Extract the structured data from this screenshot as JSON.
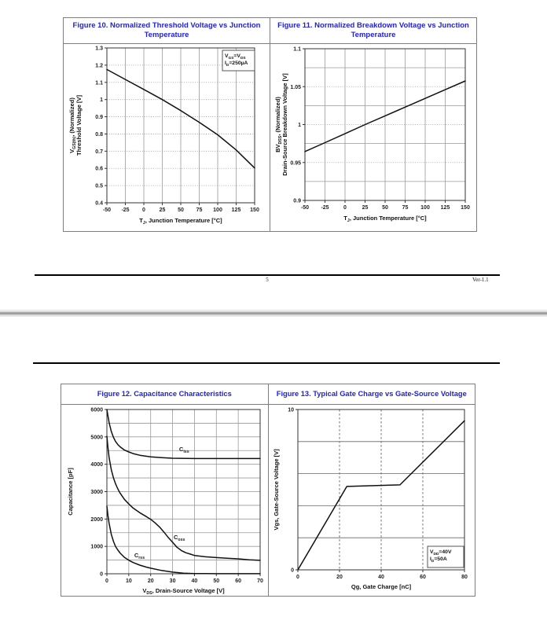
{
  "colors": {
    "figure_title_blue": "#2121de"
  },
  "footer": {
    "page_number": "5",
    "version": "Ver-1.1"
  },
  "chart_data": [
    {
      "type": "line",
      "title": "Figure 10. Normalized Threshold Voltage vs Junction Temperature",
      "xlabel": "T_{J}, Junction Temperature [°C]",
      "ylabel_lines": [
        "V_{GS(th)}, (Normalized)",
        "Threshold Voltage [V]"
      ],
      "xlim": [
        -50,
        150
      ],
      "ylim": [
        0.4,
        1.3
      ],
      "x_ticks": [
        -50,
        -25,
        0,
        25,
        50,
        75,
        100,
        125,
        150
      ],
      "x_tick_labels": [
        "-50",
        "-25",
        "0",
        "25",
        "50",
        "75",
        "100",
        "125",
        "150"
      ],
      "y_ticks": [
        0.4,
        0.5,
        0.6,
        0.7,
        0.8,
        0.9,
        1,
        1.1,
        1.2,
        1.3
      ],
      "y_tick_labels": [
        "0.4",
        "0.5",
        "0.6",
        "0.7",
        "0.8",
        "0.9",
        "1",
        "1.1",
        "1.2",
        "1.3"
      ],
      "grids": [
        {
          "axis": "x",
          "style": "solid",
          "values": [
            -25,
            0,
            25,
            50,
            75,
            100,
            125
          ]
        },
        {
          "axis": "y",
          "style": "dotted",
          "values": [
            0.5,
            0.6,
            0.7,
            0.8,
            0.9,
            1,
            1.1,
            1.2
          ]
        }
      ],
      "legend_position": "none",
      "series": [
        {
          "name": "normalized-threshold-voltage",
          "points": [
            [
              -50,
              1.175
            ],
            [
              -25,
              1.117
            ],
            [
              0,
              1.059
            ],
            [
              25,
              1.0
            ],
            [
              50,
              0.936
            ],
            [
              75,
              0.868
            ],
            [
              100,
              0.795
            ],
            [
              125,
              0.707
            ],
            [
              150,
              0.602
            ]
          ]
        }
      ],
      "inset": {
        "lines": [
          "V_{GS}=V_{DS}",
          "I_{D}=250µA"
        ],
        "position": "top-right"
      }
    },
    {
      "type": "line",
      "title": "Figure 11. Normalized Breakdown Voltage vs Junction Temperature",
      "xlabel": "T_{J}, Junction Temperature [°C]",
      "ylabel_lines": [
        "BV_{DSS}, (Normalized)",
        "Drain-Source Breakdown Voltage [V]"
      ],
      "xlim": [
        -50,
        150
      ],
      "ylim": [
        0.9,
        1.1
      ],
      "x_ticks": [
        -50,
        -25,
        0,
        25,
        50,
        75,
        100,
        125,
        150
      ],
      "x_tick_labels": [
        "-50",
        "-25",
        "0",
        "25",
        "50",
        "75",
        "100",
        "125",
        "150"
      ],
      "y_ticks": [
        0.9,
        0.95,
        1,
        1.05,
        1.1
      ],
      "y_tick_labels": [
        "0.9",
        "0.95",
        "1",
        "1.05",
        "1.1"
      ],
      "grids": [
        {
          "axis": "x",
          "style": "solid",
          "values": [
            -25,
            0,
            25,
            50,
            75,
            100,
            125
          ]
        },
        {
          "axis": "y",
          "style": "solid",
          "values": [
            0.925,
            0.975,
            1.025,
            1.075
          ]
        },
        {
          "axis": "y",
          "style": "dotted",
          "values": [
            0.95,
            1,
            1.05
          ]
        }
      ],
      "legend_position": "none",
      "series": [
        {
          "name": "normalized-breakdown-voltage",
          "points": [
            [
              -50,
              0.9645
            ],
            [
              -25,
              0.9762
            ],
            [
              0,
              0.988
            ],
            [
              25,
              1.0
            ],
            [
              50,
              1.0115
            ],
            [
              75,
              1.023
            ],
            [
              100,
              1.0345
            ],
            [
              125,
              1.046
            ],
            [
              150,
              1.0575
            ]
          ]
        }
      ]
    },
    {
      "type": "line",
      "title": "Figure 12. Capacitance Characteristics",
      "xlabel": "V_{DS}, Drain-Source Voltage [V]",
      "ylabel_lines": [
        "Capacitance [pF]"
      ],
      "xlim": [
        0,
        70
      ],
      "ylim": [
        0,
        6000
      ],
      "x_ticks": [
        0,
        10,
        20,
        30,
        40,
        50,
        60,
        70
      ],
      "x_tick_labels": [
        "0",
        "10",
        "20",
        "30",
        "40",
        "50",
        "60",
        "70"
      ],
      "y_ticks": [
        0,
        1000,
        2000,
        3000,
        4000,
        5000,
        6000
      ],
      "y_tick_labels": [
        "0",
        "1000",
        "2000",
        "3000",
        "4000",
        "5000",
        "6000"
      ],
      "grids": [
        {
          "axis": "x",
          "style": "solid",
          "values": [
            10,
            20,
            30,
            40,
            50,
            60
          ]
        },
        {
          "axis": "y",
          "style": "solid",
          "values": [
            500,
            1000,
            1500,
            2000,
            2500,
            3000,
            3500,
            4000,
            4500,
            5000,
            5500
          ]
        }
      ],
      "legend_position": "none",
      "series": [
        {
          "name": "Ciss",
          "label": "C_{iss}",
          "label_at": [
            33,
            4480
          ],
          "points": [
            [
              0,
              6000
            ],
            [
              0.5,
              5760
            ],
            [
              1,
              5530
            ],
            [
              2,
              5200
            ],
            [
              3,
              4980
            ],
            [
              4,
              4830
            ],
            [
              5,
              4720
            ],
            [
              6,
              4640
            ],
            [
              8,
              4520
            ],
            [
              10,
              4450
            ],
            [
              12,
              4390
            ],
            [
              15,
              4330
            ],
            [
              20,
              4270
            ],
            [
              25,
              4240
            ],
            [
              30,
              4220
            ],
            [
              40,
              4210
            ],
            [
              50,
              4210
            ],
            [
              60,
              4210
            ],
            [
              70,
              4210
            ]
          ]
        },
        {
          "name": "Coss",
          "label": "C_{oss}",
          "label_at": [
            30.5,
            1270
          ],
          "points": [
            [
              0,
              5020
            ],
            [
              0.5,
              4600
            ],
            [
              1,
              4250
            ],
            [
              2,
              3800
            ],
            [
              3,
              3500
            ],
            [
              4,
              3280
            ],
            [
              5,
              3100
            ],
            [
              6,
              2950
            ],
            [
              8,
              2720
            ],
            [
              10,
              2550
            ],
            [
              12,
              2400
            ],
            [
              15,
              2230
            ],
            [
              18,
              2090
            ],
            [
              20,
              1990
            ],
            [
              22,
              1860
            ],
            [
              24,
              1710
            ],
            [
              26,
              1530
            ],
            [
              28,
              1330
            ],
            [
              30,
              1150
            ],
            [
              32,
              970
            ],
            [
              34,
              850
            ],
            [
              36,
              770
            ],
            [
              38,
              720
            ],
            [
              40,
              670
            ],
            [
              45,
              620
            ],
            [
              50,
              590
            ],
            [
              55,
              565
            ],
            [
              60,
              545
            ],
            [
              65,
              510
            ],
            [
              70,
              490
            ]
          ]
        },
        {
          "name": "Crss",
          "label": "C_{rss}",
          "label_at": [
            12.5,
            600
          ],
          "points": [
            [
              0,
              2470
            ],
            [
              0.5,
              2120
            ],
            [
              1,
              1850
            ],
            [
              2,
              1440
            ],
            [
              3,
              1180
            ],
            [
              4,
              990
            ],
            [
              5,
              870
            ],
            [
              6,
              760
            ],
            [
              8,
              600
            ],
            [
              10,
              495
            ],
            [
              12,
              410
            ],
            [
              15,
              315
            ],
            [
              18,
              245
            ],
            [
              20,
              205
            ],
            [
              25,
              120
            ],
            [
              30,
              60
            ],
            [
              35,
              22
            ],
            [
              40,
              8
            ],
            [
              45,
              5
            ],
            [
              50,
              4
            ],
            [
              60,
              3
            ],
            [
              70,
              2
            ]
          ]
        }
      ]
    },
    {
      "type": "line",
      "title": "Figure 13. Typical Gate Charge vs Gate-Source Voltage",
      "xlabel": "Qg, Gate Charge [nC]",
      "ylabel_lines": [
        "Vgs, Gate-Source Voltage [V]"
      ],
      "xlim": [
        0,
        80
      ],
      "ylim": [
        0,
        10
      ],
      "x_ticks": [
        0,
        20,
        40,
        60,
        80
      ],
      "x_tick_labels": [
        "0",
        "20",
        "40",
        "60",
        "80"
      ],
      "y_ticks": [
        0,
        10
      ],
      "y_tick_labels": [
        "0",
        "10"
      ],
      "grids": [
        {
          "axis": "x",
          "style": "dashed",
          "values": [
            20,
            40,
            60,
            80
          ]
        },
        {
          "axis": "y",
          "style": "solid",
          "color": "#666",
          "values": [
            2,
            4,
            6,
            8
          ]
        }
      ],
      "legend_position": "none",
      "series": [
        {
          "name": "gate-charge-curve",
          "points": [
            [
              0,
              0
            ],
            [
              23.5,
              5.2
            ],
            [
              49,
              5.3
            ],
            [
              80,
              9.3
            ]
          ]
        }
      ],
      "inset": {
        "lines": [
          "V_{DD}=40V",
          "I_{D}=50A"
        ],
        "position": "bottom-right"
      }
    }
  ]
}
